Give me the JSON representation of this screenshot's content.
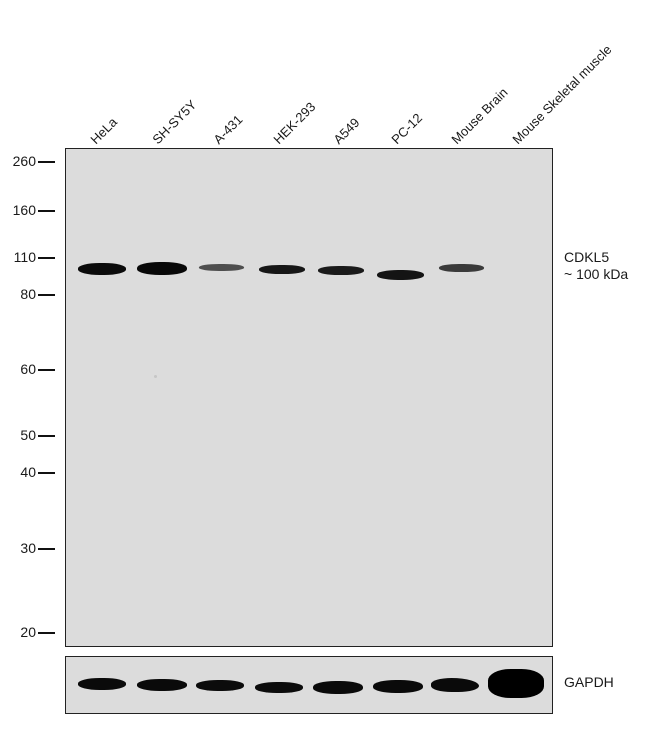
{
  "lanes": [
    "HeLa",
    "SH-SY5Y",
    "A-431",
    "HEK-293",
    "A549",
    "PC-12",
    "Mouse Brain",
    "Mouse Skeletal muscle"
  ],
  "mw_markers": [
    "260",
    "160",
    "110",
    "80",
    "60",
    "50",
    "40",
    "30",
    "20"
  ],
  "target": {
    "name": "CDKL5",
    "size": "~ 100 kDa"
  },
  "loading_control": "GAPDH",
  "colors": {
    "membrane": "#dcdcdc",
    "band": "#111111",
    "frame": "#222222"
  }
}
